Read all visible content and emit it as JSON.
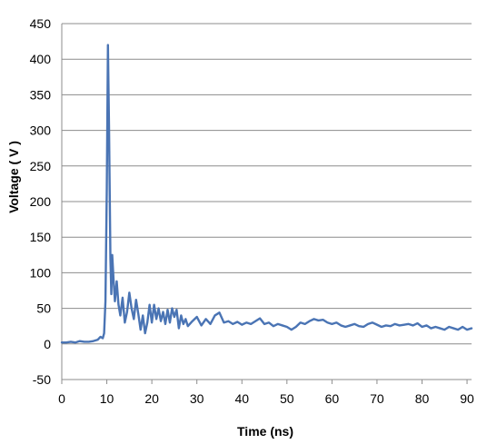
{
  "chart_data": {
    "type": "line",
    "title": "",
    "xlabel": "Time (ns)",
    "ylabel": "Voltage ( V )",
    "xlim": [
      0,
      91
    ],
    "ylim": [
      -50,
      450
    ],
    "x_ticks": [
      0,
      10,
      20,
      30,
      40,
      50,
      60,
      70,
      80,
      90
    ],
    "y_ticks": [
      -50,
      0,
      50,
      100,
      150,
      200,
      250,
      300,
      350,
      400,
      450
    ],
    "grid": "horizontal",
    "legend": "none",
    "series": [
      {
        "color": "#4a74b4",
        "points": [
          [
            0,
            2
          ],
          [
            1,
            2
          ],
          [
            2,
            3
          ],
          [
            3,
            2
          ],
          [
            4,
            4
          ],
          [
            5,
            3
          ],
          [
            6,
            3
          ],
          [
            7,
            4
          ],
          [
            8,
            6
          ],
          [
            8.6,
            10
          ],
          [
            9.1,
            8
          ],
          [
            9.4,
            15
          ],
          [
            9.7,
            60
          ],
          [
            10.0,
            220
          ],
          [
            10.25,
            420
          ],
          [
            10.5,
            300
          ],
          [
            10.8,
            120
          ],
          [
            11.0,
            70
          ],
          [
            11.2,
            125
          ],
          [
            11.5,
            90
          ],
          [
            11.8,
            60
          ],
          [
            12.2,
            88
          ],
          [
            12.6,
            55
          ],
          [
            13.0,
            40
          ],
          [
            13.5,
            65
          ],
          [
            14.0,
            30
          ],
          [
            14.5,
            45
          ],
          [
            15.0,
            72
          ],
          [
            15.5,
            50
          ],
          [
            16.0,
            35
          ],
          [
            16.5,
            62
          ],
          [
            17.0,
            42
          ],
          [
            17.5,
            20
          ],
          [
            18.0,
            40
          ],
          [
            18.5,
            15
          ],
          [
            19.0,
            30
          ],
          [
            19.5,
            55
          ],
          [
            20.0,
            30
          ],
          [
            20.5,
            55
          ],
          [
            21.0,
            35
          ],
          [
            21.5,
            50
          ],
          [
            22.0,
            32
          ],
          [
            22.5,
            45
          ],
          [
            23.0,
            28
          ],
          [
            23.5,
            48
          ],
          [
            24.0,
            30
          ],
          [
            24.5,
            50
          ],
          [
            25.0,
            38
          ],
          [
            25.5,
            48
          ],
          [
            26.0,
            22
          ],
          [
            26.5,
            40
          ],
          [
            27.0,
            28
          ],
          [
            27.5,
            35
          ],
          [
            28.0,
            25
          ],
          [
            29.0,
            32
          ],
          [
            30.0,
            38
          ],
          [
            31.0,
            26
          ],
          [
            32.0,
            35
          ],
          [
            33.0,
            28
          ],
          [
            34.0,
            40
          ],
          [
            35.0,
            44
          ],
          [
            36.0,
            30
          ],
          [
            37.0,
            32
          ],
          [
            38.0,
            28
          ],
          [
            39.0,
            31
          ],
          [
            40.0,
            27
          ],
          [
            41.0,
            30
          ],
          [
            42.0,
            28
          ],
          [
            43.0,
            32
          ],
          [
            44.0,
            36
          ],
          [
            45.0,
            28
          ],
          [
            46.0,
            30
          ],
          [
            47.0,
            25
          ],
          [
            48.0,
            28
          ],
          [
            49.0,
            26
          ],
          [
            50.0,
            24
          ],
          [
            51.0,
            20
          ],
          [
            52.0,
            24
          ],
          [
            53.0,
            30
          ],
          [
            54.0,
            28
          ],
          [
            55.0,
            32
          ],
          [
            56.0,
            35
          ],
          [
            57.0,
            33
          ],
          [
            58.0,
            34
          ],
          [
            59.0,
            30
          ],
          [
            60.0,
            28
          ],
          [
            61.0,
            30
          ],
          [
            62.0,
            26
          ],
          [
            63.0,
            24
          ],
          [
            64.0,
            26
          ],
          [
            65.0,
            28
          ],
          [
            66.0,
            25
          ],
          [
            67.0,
            24
          ],
          [
            68.0,
            28
          ],
          [
            69.0,
            30
          ],
          [
            70.0,
            27
          ],
          [
            71.0,
            24
          ],
          [
            72.0,
            26
          ],
          [
            73.0,
            25
          ],
          [
            74.0,
            28
          ],
          [
            75.0,
            26
          ],
          [
            76.0,
            27
          ],
          [
            77.0,
            28
          ],
          [
            78.0,
            26
          ],
          [
            79.0,
            29
          ],
          [
            80.0,
            24
          ],
          [
            81.0,
            26
          ],
          [
            82.0,
            22
          ],
          [
            83.0,
            24
          ],
          [
            84.0,
            22
          ],
          [
            85.0,
            20
          ],
          [
            86.0,
            24
          ],
          [
            87.0,
            22
          ],
          [
            88.0,
            20
          ],
          [
            89.0,
            24
          ],
          [
            90.0,
            20
          ],
          [
            91.0,
            22
          ]
        ]
      }
    ]
  }
}
